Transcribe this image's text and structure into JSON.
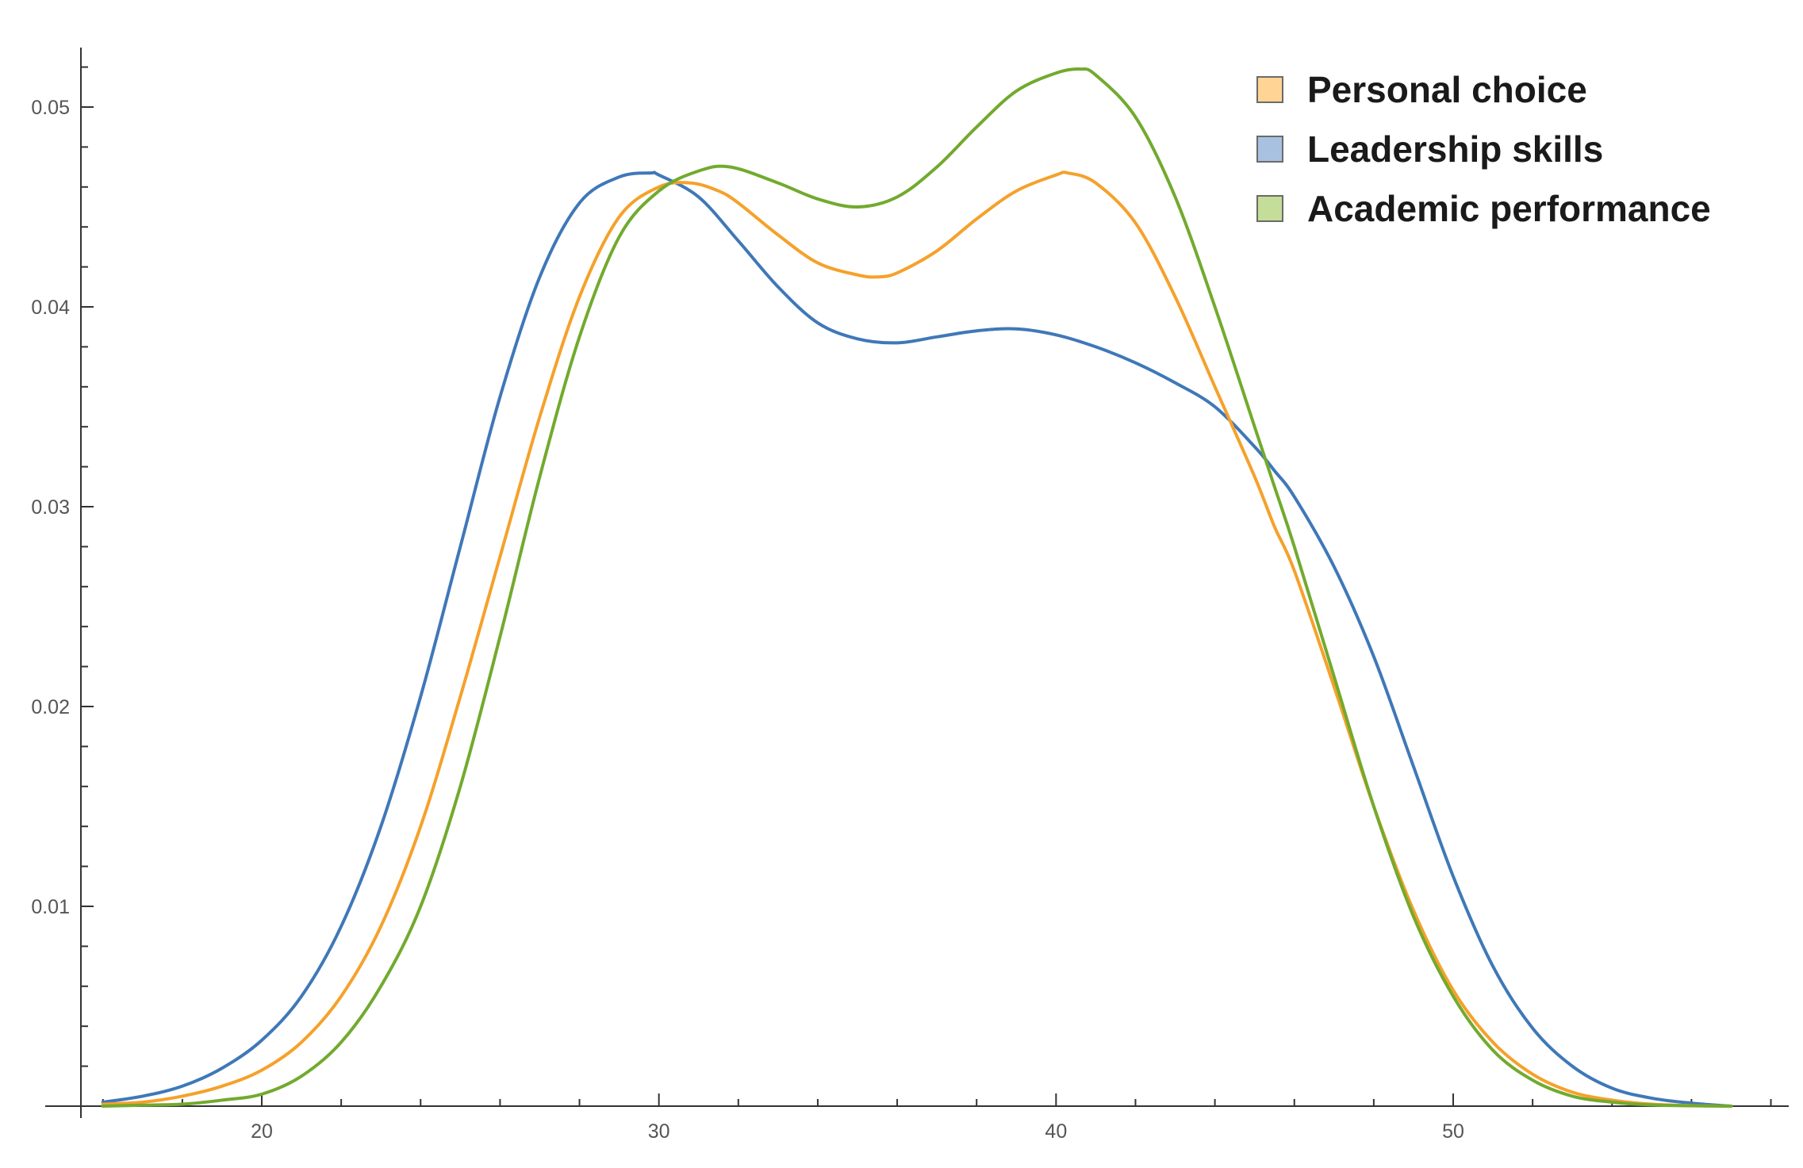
{
  "chart_data": {
    "type": "line",
    "title": "",
    "xlabel": "",
    "ylabel": "",
    "xlim": [
      15.5,
      58.5
    ],
    "ylim": [
      0,
      0.053
    ],
    "x_ticks": [
      20,
      30,
      40,
      50
    ],
    "x_tick_labels": [
      "20",
      "30",
      "40",
      "50"
    ],
    "y_ticks": [
      0.01,
      0.02,
      0.03,
      0.04,
      0.05
    ],
    "y_tick_labels": [
      "0.01",
      "0.02",
      "0.03",
      "0.04",
      "0.05"
    ],
    "grid": false,
    "legend_position": "top-right",
    "series": [
      {
        "name": "Personal choice",
        "color": "#F5A12B",
        "legend_swatch": "#FFD494",
        "x": [
          16,
          17,
          18,
          19,
          20,
          21,
          22,
          23,
          24,
          25,
          26,
          27,
          28,
          29,
          30,
          30.8,
          31.5,
          32,
          33,
          34,
          35,
          35.5,
          36,
          37,
          38,
          39,
          40,
          40.3,
          41,
          42,
          43,
          44,
          45,
          45.5,
          46,
          47,
          48,
          49,
          50,
          51,
          52,
          53,
          54,
          55,
          56,
          57
        ],
        "y": [
          0.0001,
          0.0002,
          0.0005,
          0.001,
          0.0018,
          0.0032,
          0.0055,
          0.009,
          0.014,
          0.0205,
          0.0275,
          0.0345,
          0.0405,
          0.0445,
          0.046,
          0.0462,
          0.0458,
          0.0452,
          0.0436,
          0.0422,
          0.0416,
          0.0415,
          0.0417,
          0.0428,
          0.0444,
          0.0458,
          0.0466,
          0.0467,
          0.0462,
          0.0442,
          0.0405,
          0.036,
          0.0315,
          0.029,
          0.0268,
          0.021,
          0.015,
          0.0098,
          0.0058,
          0.0032,
          0.0016,
          0.0007,
          0.0003,
          0.0001,
          3e-05,
          0.0
        ]
      },
      {
        "name": "Leadership skills",
        "color": "#3F78B8",
        "legend_swatch": "#A9C1E0",
        "x": [
          16,
          17,
          18,
          19,
          20,
          21,
          22,
          23,
          24,
          25,
          26,
          27,
          28,
          29,
          29.8,
          30,
          31,
          32,
          33,
          34,
          35,
          36,
          37,
          38,
          39,
          40,
          41,
          42,
          43,
          44,
          45,
          45.5,
          46,
          47,
          48,
          49,
          50,
          51,
          52,
          53,
          54,
          55,
          56,
          57
        ],
        "y": [
          0.0002,
          0.0005,
          0.001,
          0.0019,
          0.0033,
          0.0055,
          0.009,
          0.014,
          0.0205,
          0.028,
          0.0355,
          0.0415,
          0.0452,
          0.0465,
          0.0467,
          0.0466,
          0.0455,
          0.0433,
          0.041,
          0.0392,
          0.0384,
          0.0382,
          0.0385,
          0.0388,
          0.0389,
          0.0386,
          0.038,
          0.0372,
          0.0362,
          0.035,
          0.033,
          0.0318,
          0.0305,
          0.027,
          0.0225,
          0.017,
          0.0115,
          0.007,
          0.0039,
          0.002,
          0.0009,
          0.0004,
          0.00015,
          0.0
        ]
      },
      {
        "name": "Academic performance",
        "color": "#72AA2E",
        "legend_swatch": "#C4DD98",
        "x": [
          16,
          17,
          18,
          19,
          20,
          21,
          22,
          23,
          24,
          25,
          26,
          27,
          28,
          29,
          30,
          31,
          31.8,
          33,
          34,
          35,
          36,
          37,
          38,
          39,
          40,
          40.6,
          41,
          42,
          43,
          44,
          45,
          45.5,
          46,
          47,
          48,
          49,
          50,
          51,
          52,
          53,
          54,
          55,
          56,
          57
        ],
        "y": [
          0.0,
          5e-05,
          0.0001,
          0.0003,
          0.0006,
          0.0015,
          0.0032,
          0.006,
          0.01,
          0.016,
          0.0235,
          0.0315,
          0.0385,
          0.0435,
          0.0458,
          0.0468,
          0.047,
          0.0462,
          0.0454,
          0.045,
          0.0455,
          0.047,
          0.049,
          0.0508,
          0.0517,
          0.0519,
          0.0516,
          0.0495,
          0.0455,
          0.04,
          0.034,
          0.031,
          0.028,
          0.0215,
          0.015,
          0.0095,
          0.0055,
          0.0028,
          0.0013,
          0.0005,
          0.0002,
          6e-05,
          2e-05,
          0.0
        ]
      }
    ]
  }
}
